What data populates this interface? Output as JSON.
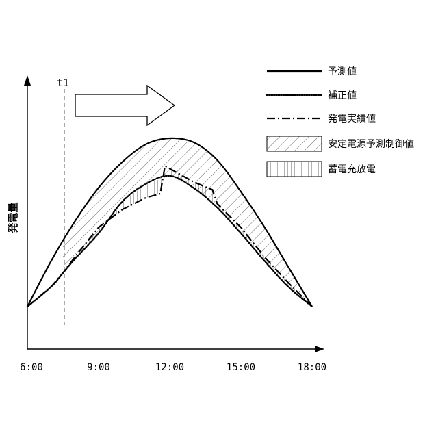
{
  "chart_data": {
    "type": "line",
    "ylabel": "発電量",
    "xlabel": "",
    "x_ticks": [
      "6:00",
      "9:00",
      "12:00",
      "15:00",
      "18:00"
    ],
    "x_range_hours": [
      6,
      18
    ],
    "marker_label": "t1",
    "marker_hour": 7.5,
    "series": [
      {
        "name": "予測値",
        "style": "solid",
        "x": [
          6,
          7,
          8,
          9,
          10,
          11,
          12,
          13,
          14,
          15,
          16,
          17,
          18
        ],
        "y": [
          0,
          23,
          43,
          60,
          73,
          82,
          85,
          83,
          74,
          58,
          40,
          20,
          0
        ]
      },
      {
        "name": "補正値",
        "style": "dotted",
        "x": [
          6,
          7,
          7.5,
          8,
          9,
          10,
          11,
          12,
          13,
          14,
          15,
          16,
          17,
          18
        ],
        "y": [
          0,
          10,
          17,
          24,
          37,
          53,
          62,
          66,
          60,
          50,
          37,
          23,
          10,
          0
        ]
      },
      {
        "name": "発電実績値",
        "style": "dashdot",
        "x": [
          6,
          7,
          7.5,
          8,
          9,
          10,
          11,
          11.6,
          11.8,
          13,
          13.8,
          14,
          15,
          16,
          17,
          18
        ],
        "y": [
          0,
          10,
          17,
          25,
          40,
          49,
          55,
          57,
          71,
          63,
          59,
          52,
          40,
          25,
          12,
          0
        ]
      }
    ],
    "legend": [
      {
        "label": "予測値",
        "swatch": "solid-line"
      },
      {
        "label": "補正値",
        "swatch": "dotted-line"
      },
      {
        "label": "発電実績値",
        "swatch": "dashdot-line"
      },
      {
        "label": "安定電源予測制御値",
        "swatch": "diagonal-hatch"
      },
      {
        "label": "蓄電充放電",
        "swatch": "vertical-hatch"
      }
    ],
    "legend_position": "top-right",
    "grid": false
  }
}
